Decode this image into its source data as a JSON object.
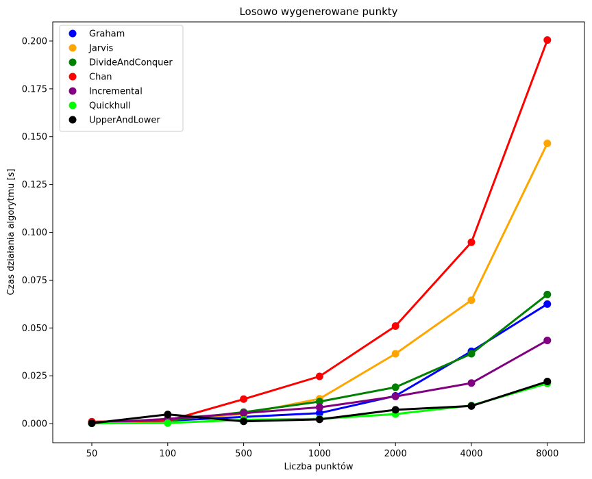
{
  "chart_data": {
    "type": "line",
    "title": "Losowo wygenerowane punkty",
    "xlabel": "Liczba punktów",
    "ylabel": "Czas działania algorytmu [s]",
    "categories": [
      "50",
      "100",
      "500",
      "1000",
      "2000",
      "4000",
      "8000"
    ],
    "ylim": [
      -0.01,
      0.21
    ],
    "yticks": [
      "0.000",
      "0.025",
      "0.050",
      "0.075",
      "0.100",
      "0.125",
      "0.150",
      "0.175",
      "0.200"
    ],
    "grid": false,
    "legend_position": "top-left",
    "series": [
      {
        "name": "Graham",
        "color": "#0000ff",
        "values": [
          0.0002,
          0.0015,
          0.0035,
          0.0055,
          0.0145,
          0.0378,
          0.0625
        ]
      },
      {
        "name": "Jarvis",
        "color": "#ffa500",
        "values": [
          0.0003,
          0.002,
          0.005,
          0.013,
          0.0365,
          0.0645,
          0.1465
        ]
      },
      {
        "name": "DivideAndConquer",
        "color": "#008000",
        "values": [
          0.0002,
          0.0015,
          0.006,
          0.0115,
          0.019,
          0.0365,
          0.0675
        ]
      },
      {
        "name": "Chan",
        "color": "#ff0000",
        "values": [
          0.001,
          0.0015,
          0.0128,
          0.0247,
          0.051,
          0.0948,
          0.2005
        ]
      },
      {
        "name": "Incremental",
        "color": "#800080",
        "values": [
          0.0002,
          0.0025,
          0.0055,
          0.0085,
          0.0142,
          0.0212,
          0.0435
        ]
      },
      {
        "name": "Quickhull",
        "color": "#00ff00",
        "values": [
          0.0001,
          0.0003,
          0.002,
          0.0025,
          0.005,
          0.0095,
          0.021
        ]
      },
      {
        "name": "UpperAndLower",
        "color": "#000000",
        "values": [
          0.0002,
          0.0048,
          0.0012,
          0.0022,
          0.0072,
          0.0092,
          0.022
        ]
      }
    ]
  }
}
